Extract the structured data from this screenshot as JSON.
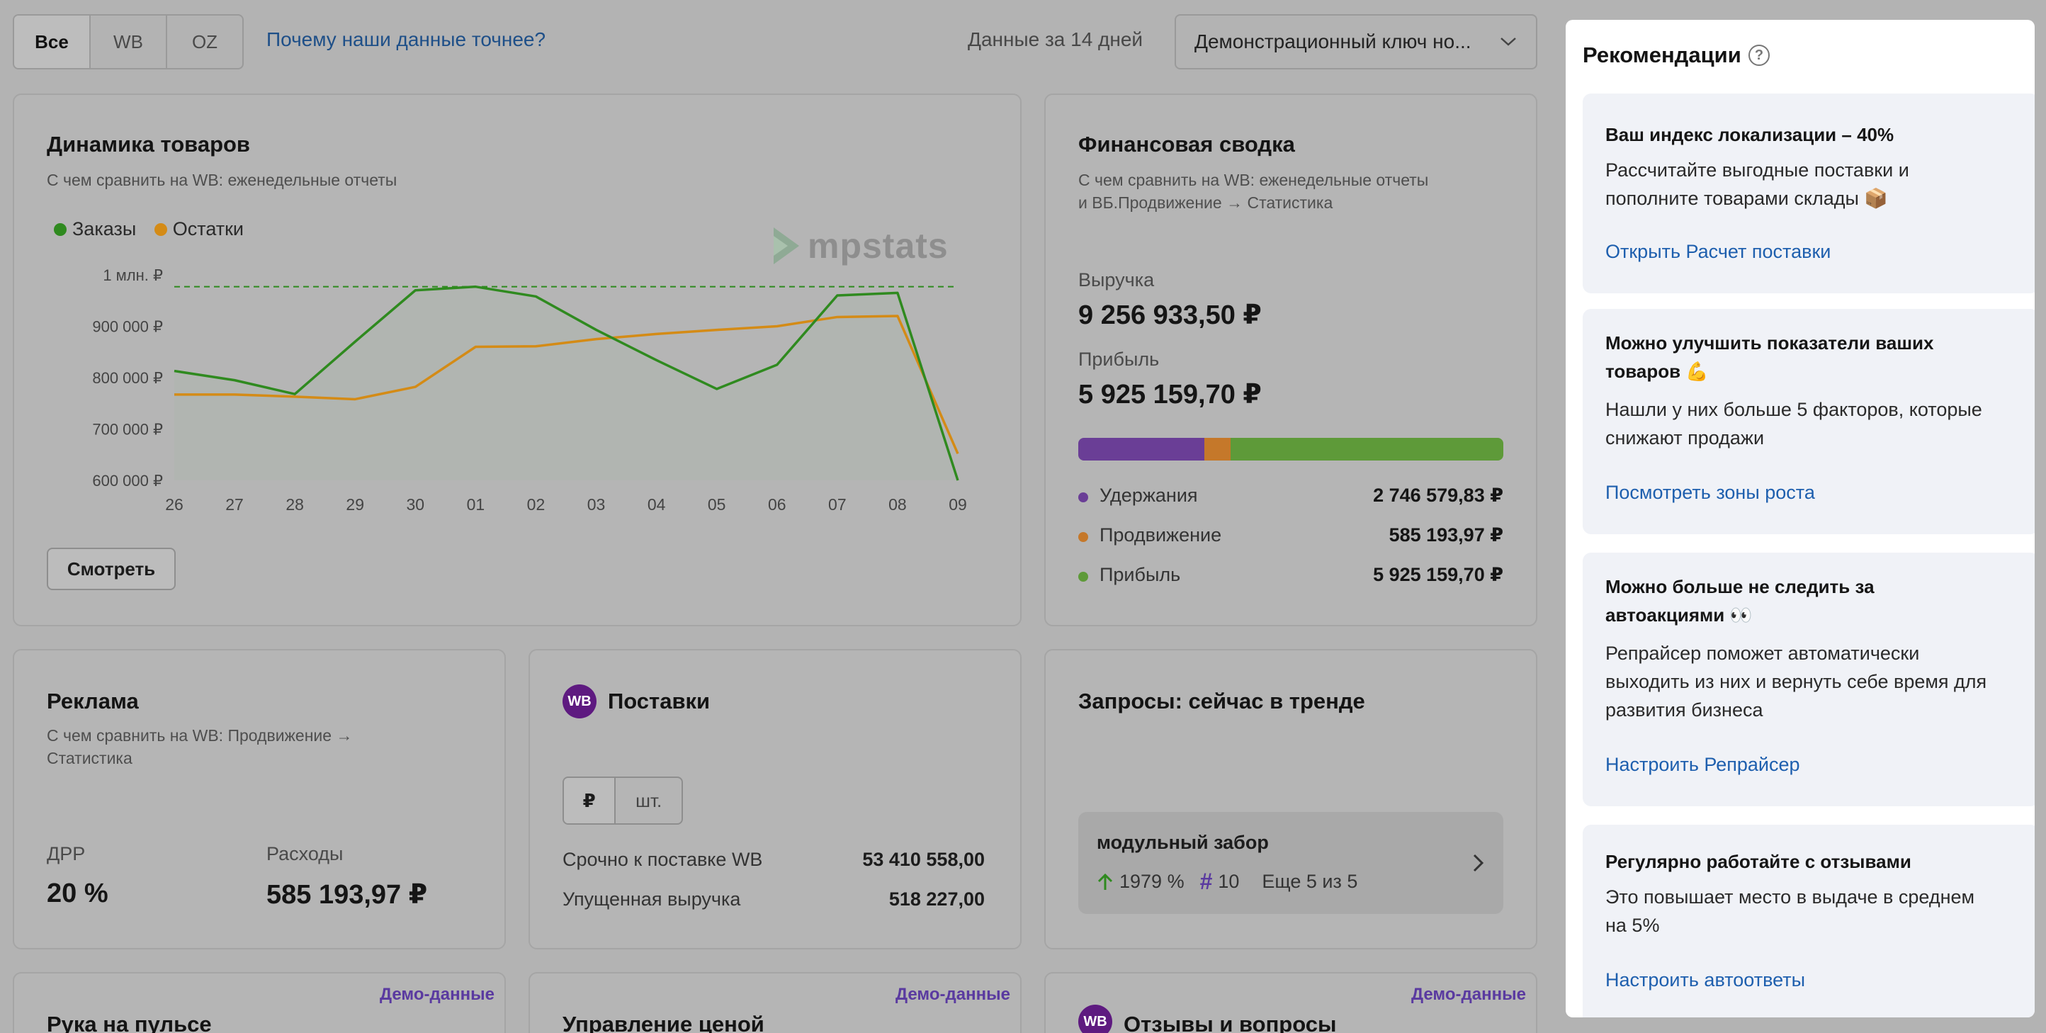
{
  "filters": {
    "tabs": [
      {
        "label": "Все"
      },
      {
        "label": "WB"
      },
      {
        "label": "OZ"
      }
    ],
    "why_link": "Почему наши данные точнее?",
    "period": "Данные за 14 дней",
    "key_select": "Демонстрационный ключ но..."
  },
  "dynamics": {
    "title": "Динамика товаров",
    "subtitle": "С чем сравнить на WB: еженедельные отчеты",
    "watermark": "mpstats",
    "button": "Смотреть",
    "chart_data": {
      "type": "line",
      "x": [
        "26",
        "27",
        "28",
        "29",
        "30",
        "01",
        "02",
        "03",
        "04",
        "05",
        "06",
        "07",
        "08",
        "09"
      ],
      "y_ticks": [
        "1 млн. ₽",
        "900 000 ₽",
        "800 000 ₽",
        "700 000 ₽",
        "600 000 ₽"
      ],
      "ylim": [
        600000,
        1000000
      ],
      "reference_line": 977000,
      "series": [
        {
          "name": "Заказы",
          "color": "#2f8a1f",
          "values": [
            813000,
            795000,
            768000,
            870000,
            970000,
            977000,
            958000,
            893000,
            834000,
            778000,
            825000,
            960000,
            965000,
            600000
          ]
        },
        {
          "name": "Остатки",
          "color": "#d48b16",
          "values": [
            767000,
            767000,
            763000,
            758000,
            782000,
            860000,
            861000,
            875000,
            885000,
            893000,
            900000,
            918000,
            920000,
            652000
          ]
        }
      ]
    }
  },
  "finance": {
    "title": "Финансовая сводка",
    "subtitle_1": "С чем сравнить на WB: еженедельные отчеты",
    "subtitle_2": "и ВБ.Продвижение → Статистика",
    "revenue_label": "Выручка",
    "revenue": "9 256 933,50 ₽",
    "profit_label": "Прибыль",
    "profit": "5 925 159,70 ₽",
    "bar_fractions": [
      0.296,
      0.063,
      0.641
    ],
    "rows": [
      {
        "name": "Удержания",
        "value": "2 746 579,83 ₽",
        "color": "#6a3e96"
      },
      {
        "name": "Продвижение",
        "value": "585 193,97 ₽",
        "color": "#c5782a"
      },
      {
        "name": "Прибыль",
        "value": "5 925 159,70 ₽",
        "color": "#5e9a39"
      }
    ]
  },
  "ads": {
    "title": "Реклама",
    "subtitle": "С чем сравнить на WB: Продвижение →",
    "subtitle_2": "Статистика",
    "drr_label": "ДРР",
    "drr_value": "20 %",
    "spend_label": "Расходы",
    "spend_value": "585 193,97 ₽"
  },
  "supplies": {
    "badge": "WB",
    "title": "Поставки",
    "unit_tabs": [
      "₽",
      "шт."
    ],
    "rows": [
      {
        "name": "Срочно к поставке WB",
        "value": "53 410 558,00"
      },
      {
        "name": "Упущенная выручка",
        "value": "518 227,00"
      }
    ]
  },
  "trends": {
    "title": "Запросы: сейчас в тренде",
    "item_name": "модульный забор",
    "growth": "1979 %",
    "hash_count": "10",
    "more": "Еще 5 из 5"
  },
  "bottom_cards": [
    {
      "title": "Рука на пульсе",
      "demo": "Демо-данные"
    },
    {
      "title": "Управление ценой",
      "demo": "Демо-данные"
    },
    {
      "title": "Отзывы и вопросы",
      "demo": "Демо-данные",
      "badge": "WB"
    }
  ],
  "recommendations": {
    "title": "Рекомендации",
    "items": [
      {
        "title": "Ваш индекс локализации – 40%",
        "text_1": "Рассчитайте выгодные поставки и",
        "text_2": "пополните товарами склады 📦",
        "link": "Открыть Расчет поставки"
      },
      {
        "title_1": "Можно улучшить показатели ваших",
        "title_2": "товаров 💪",
        "text_1": "Нашли у них больше 5 факторов, которые",
        "text_2": "снижают продажи",
        "link": "Посмотреть зоны роста"
      },
      {
        "title_1": "Можно больше не следить за",
        "title_2": "автоакциями 👀",
        "text_1": "Репрайсер поможет автоматически",
        "text_2": "выходить из них и вернуть себе время для",
        "text_3": "развития бизнеса",
        "link": "Настроить Репрайсер"
      },
      {
        "title": "Регулярно работайте с отзывами",
        "text_1": "Это повышает место в выдаче в среднем",
        "text_2": "на 5%",
        "link": "Настроить автоответы"
      }
    ]
  }
}
